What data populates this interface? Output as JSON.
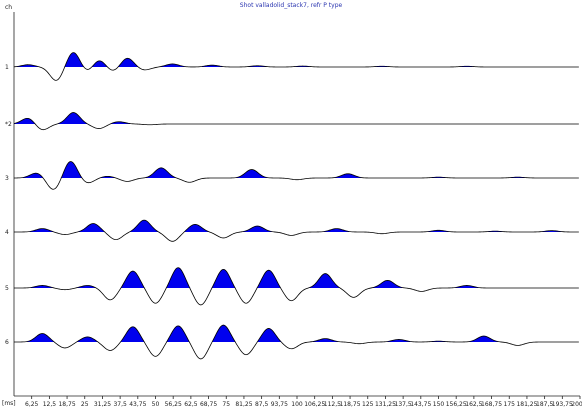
{
  "chart_data": {
    "type": "line",
    "title": "Shot valladolid_stack7, refr P type",
    "ylabel": "ch",
    "xlabel": "[ms]",
    "xlim": [
      0,
      200
    ],
    "x_ticks": [
      "6,25",
      "12,5",
      "18,75",
      "25",
      "31,25",
      "37,5",
      "43,75",
      "50",
      "56,25",
      "62,5",
      "68,75",
      "75",
      "81,25",
      "87,5",
      "93,75",
      "100",
      "106,25",
      "112,5",
      "118,75",
      "125",
      "131,25",
      "137,5",
      "143,75",
      "150",
      "156,25",
      "162,5",
      "168,75",
      "175",
      "181,25",
      "187,5",
      "193,75",
      "200"
    ],
    "colors": {
      "positive_fill": "#0000ee",
      "trace": "#000000",
      "title": "#2a35b0"
    },
    "series": [
      {
        "label": "1",
        "amp": 0.9,
        "peaks": [
          [
            5,
            0.15
          ],
          [
            15,
            -0.9
          ],
          [
            21,
            1.0
          ],
          [
            26,
            -0.35
          ],
          [
            30,
            0.5
          ],
          [
            35,
            -0.3
          ],
          [
            40,
            0.6
          ],
          [
            46,
            -0.2
          ],
          [
            56,
            0.2
          ],
          [
            70,
            0.12
          ],
          [
            86,
            0.08
          ],
          [
            102,
            0.06
          ],
          [
            130,
            0.05
          ],
          [
            160,
            0.05
          ]
        ]
      },
      {
        "label": "*2",
        "amp": 0.9,
        "peaks": [
          [
            5,
            0.4
          ],
          [
            10,
            -0.4
          ],
          [
            21,
            0.75
          ],
          [
            30,
            -0.3
          ],
          [
            37,
            0.15
          ],
          [
            48,
            -0.05
          ]
        ]
      },
      {
        "label": "3",
        "amp": 1.0,
        "peaks": [
          [
            8,
            0.3
          ],
          [
            14,
            -0.7
          ],
          [
            20,
            1.0
          ],
          [
            26,
            -0.3
          ],
          [
            33,
            0.1
          ],
          [
            40,
            -0.2
          ],
          [
            52,
            0.6
          ],
          [
            62,
            -0.25
          ],
          [
            84,
            0.5
          ],
          [
            100,
            -0.1
          ],
          [
            118,
            0.25
          ],
          [
            150,
            0.05
          ],
          [
            178,
            0.05
          ]
        ]
      },
      {
        "label": "4",
        "amp": 1.0,
        "peaks": [
          [
            10,
            0.2
          ],
          [
            18,
            -0.15
          ],
          [
            28,
            0.5
          ],
          [
            36,
            -0.45
          ],
          [
            46,
            0.7
          ],
          [
            56,
            -0.55
          ],
          [
            64,
            0.45
          ],
          [
            74,
            -0.35
          ],
          [
            86,
            0.35
          ],
          [
            98,
            -0.2
          ],
          [
            114,
            0.2
          ],
          [
            130,
            -0.1
          ],
          [
            150,
            0.1
          ],
          [
            170,
            0.05
          ],
          [
            190,
            0.08
          ]
        ]
      },
      {
        "label": "5",
        "amp": 1.0,
        "peaks": [
          [
            10,
            0.15
          ],
          [
            18,
            -0.1
          ],
          [
            26,
            0.15
          ],
          [
            34,
            -0.7
          ],
          [
            42,
            1.0
          ],
          [
            50,
            -0.9
          ],
          [
            58,
            1.2
          ],
          [
            66,
            -1.0
          ],
          [
            74,
            1.1
          ],
          [
            82,
            -0.9
          ],
          [
            90,
            1.05
          ],
          [
            98,
            -0.75
          ],
          [
            110,
            0.85
          ],
          [
            120,
            -0.55
          ],
          [
            132,
            0.45
          ],
          [
            144,
            -0.2
          ],
          [
            160,
            0.15
          ]
        ]
      },
      {
        "label": "6",
        "amp": 1.0,
        "peaks": [
          [
            10,
            0.5
          ],
          [
            18,
            -0.35
          ],
          [
            26,
            0.3
          ],
          [
            34,
            -0.5
          ],
          [
            42,
            0.9
          ],
          [
            50,
            -0.85
          ],
          [
            58,
            0.95
          ],
          [
            66,
            -1.0
          ],
          [
            74,
            1.0
          ],
          [
            82,
            -0.75
          ],
          [
            90,
            0.8
          ],
          [
            98,
            -0.4
          ],
          [
            110,
            0.2
          ],
          [
            122,
            -0.1
          ],
          [
            136,
            0.15
          ],
          [
            150,
            0.05
          ],
          [
            166,
            0.35
          ],
          [
            178,
            -0.2
          ]
        ]
      }
    ]
  }
}
